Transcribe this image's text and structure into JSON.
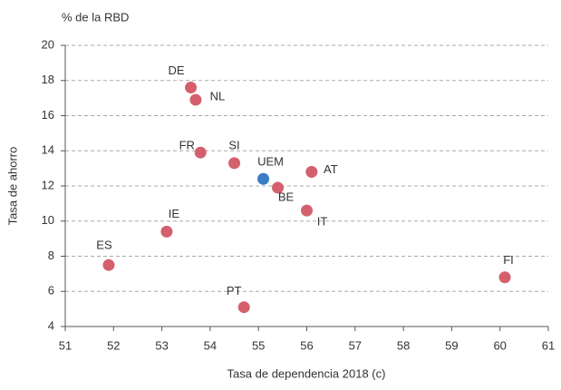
{
  "chart_data": {
    "type": "scatter",
    "y_unit_label": "% de la RBD",
    "ylabel": "Tasa de ahorro",
    "xlabel": "Tasa de dependencia 2018 (c)",
    "labels": [
      "DE",
      "NL",
      "FR",
      "SI",
      "UEM",
      "AT",
      "BE",
      "IT",
      "IE",
      "ES",
      "FI",
      "PT"
    ],
    "x": [
      53.6,
      53.7,
      53.8,
      54.5,
      55.1,
      56.1,
      55.4,
      56.0,
      53.1,
      51.9,
      60.1,
      54.7
    ],
    "values": [
      17.6,
      16.9,
      13.9,
      13.3,
      12.4,
      12.8,
      11.9,
      10.6,
      9.4,
      7.5,
      6.8,
      5.1
    ],
    "colors": [
      "#d4606e",
      "#d4606e",
      "#d4606e",
      "#d4606e",
      "#3b7cc4",
      "#d4606e",
      "#d4606e",
      "#d4606e",
      "#d4606e",
      "#d4606e",
      "#d4606e",
      "#d4606e"
    ],
    "xlim": [
      51,
      61
    ],
    "xticks": [
      51,
      52,
      53,
      54,
      55,
      56,
      57,
      58,
      59,
      60,
      61
    ],
    "ylim": [
      4,
      20
    ],
    "yticks": [
      4,
      6,
      8,
      10,
      12,
      14,
      16,
      18,
      20
    ],
    "grid": true
  }
}
